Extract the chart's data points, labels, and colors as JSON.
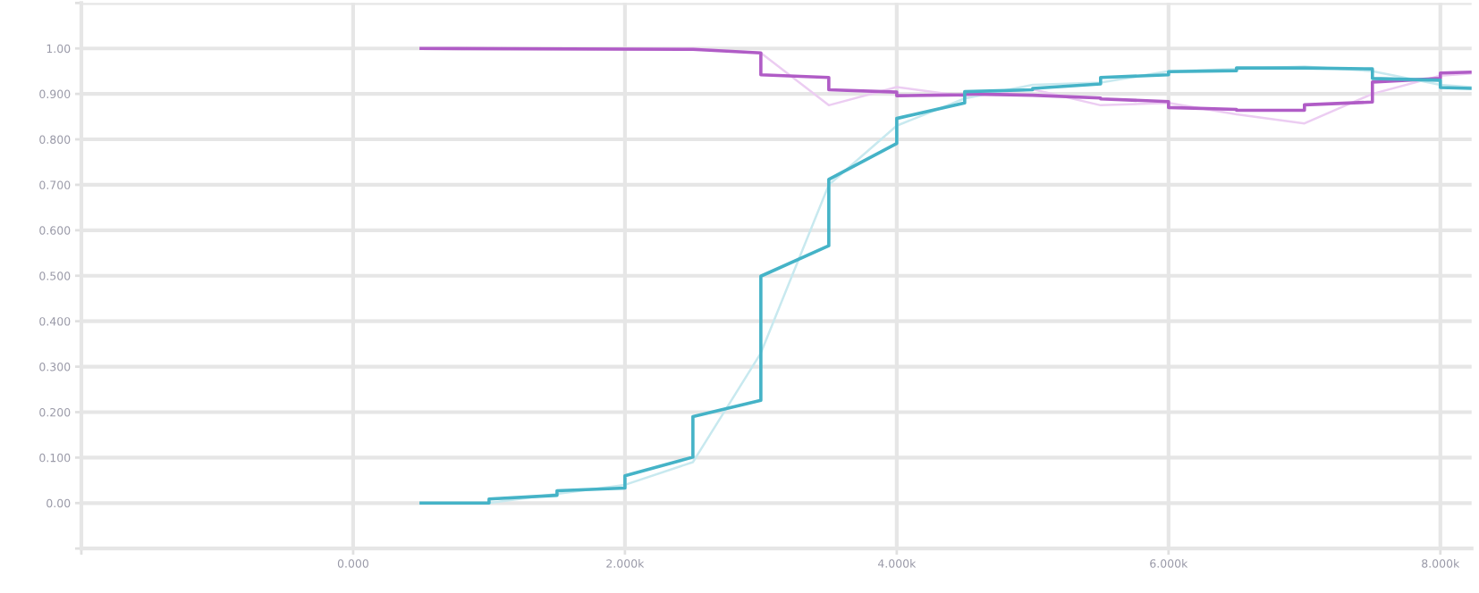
{
  "chart_data": {
    "type": "line",
    "series": [
      {
        "color": "#eccdf2",
        "x": [
          500,
          1000,
          1500,
          2000,
          2500,
          3000,
          3500,
          4000,
          4500,
          5000,
          5500,
          6000,
          6500,
          7000,
          7500,
          8000,
          8230
        ],
        "values": [
          1.0,
          1.0,
          1.0,
          1.0,
          1.0,
          0.99,
          0.875,
          0.915,
          0.895,
          0.91,
          0.875,
          0.88,
          0.855,
          0.835,
          0.9,
          0.94,
          0.945
        ]
      },
      {
        "color": "#c8e9ef",
        "x": [
          500,
          1000,
          1500,
          2000,
          2500,
          3000,
          3500,
          4000,
          4500,
          5000,
          5500,
          6000,
          6500,
          7000,
          7500,
          8000,
          8230
        ],
        "values": [
          0.0,
          0.0,
          0.02,
          0.04,
          0.09,
          0.33,
          0.7,
          0.83,
          0.89,
          0.92,
          0.925,
          0.95,
          0.955,
          0.96,
          0.95,
          0.92,
          0.915
        ]
      },
      {
        "color": "#b05cc6",
        "x": [
          500,
          2500,
          3000,
          3000,
          3500,
          3500,
          4000,
          4000,
          4500,
          4500,
          5000,
          5000,
          5500,
          5500,
          6000,
          6000,
          6500,
          6500,
          7000,
          7000,
          7500,
          7500,
          8000,
          8000,
          8230
        ],
        "values": [
          1.0,
          0.998,
          0.99,
          0.942,
          0.936,
          0.909,
          0.904,
          0.896,
          0.898,
          0.9,
          0.897,
          0.897,
          0.891,
          0.889,
          0.883,
          0.87,
          0.866,
          0.864,
          0.864,
          0.876,
          0.882,
          0.926,
          0.934,
          0.946,
          0.948
        ]
      },
      {
        "color": "#45b3c7",
        "x": [
          500,
          1000,
          1000,
          1500,
          1500,
          2000,
          2000,
          2500,
          2500,
          3000,
          3000,
          3500,
          3500,
          4000,
          4000,
          4500,
          4500,
          5000,
          5000,
          5500,
          5500,
          6000,
          6000,
          6500,
          6500,
          7000,
          7000,
          7500,
          7500,
          8000,
          8000,
          8230
        ],
        "values": [
          0.0,
          0.0,
          0.009,
          0.017,
          0.027,
          0.033,
          0.06,
          0.101,
          0.19,
          0.226,
          0.499,
          0.566,
          0.712,
          0.791,
          0.846,
          0.88,
          0.905,
          0.909,
          0.912,
          0.922,
          0.936,
          0.942,
          0.949,
          0.951,
          0.957,
          0.957,
          0.957,
          0.955,
          0.934,
          0.93,
          0.914,
          0.912
        ]
      }
    ],
    "xlim": [
      -2000,
      8230
    ],
    "xticks": [
      {
        "value": -2000,
        "label": null
      },
      {
        "value": 0,
        "label": "0.000"
      },
      {
        "value": 2000,
        "label": "2.000k"
      },
      {
        "value": 4000,
        "label": "4.000k"
      },
      {
        "value": 6000,
        "label": "6.000k"
      },
      {
        "value": 8000,
        "label": "8.000k"
      }
    ],
    "ylim": [
      -0.1,
      1.1
    ],
    "yticks": [
      {
        "value": -0.1,
        "label": null
      },
      {
        "value": 0,
        "label": "0.00"
      },
      {
        "value": 0.1,
        "label": "0.100"
      },
      {
        "value": 0.2,
        "label": "0.200"
      },
      {
        "value": 0.3,
        "label": "0.300"
      },
      {
        "value": 0.4,
        "label": "0.400"
      },
      {
        "value": 0.5,
        "label": "0.500"
      },
      {
        "value": 0.6,
        "label": "0.600"
      },
      {
        "value": 0.7,
        "label": "0.700"
      },
      {
        "value": 0.8,
        "label": "0.800"
      },
      {
        "value": 0.9,
        "label": "0.900"
      },
      {
        "value": 1.0,
        "label": "1.00"
      },
      {
        "value": 1.1,
        "label": null
      }
    ],
    "grid": true
  }
}
